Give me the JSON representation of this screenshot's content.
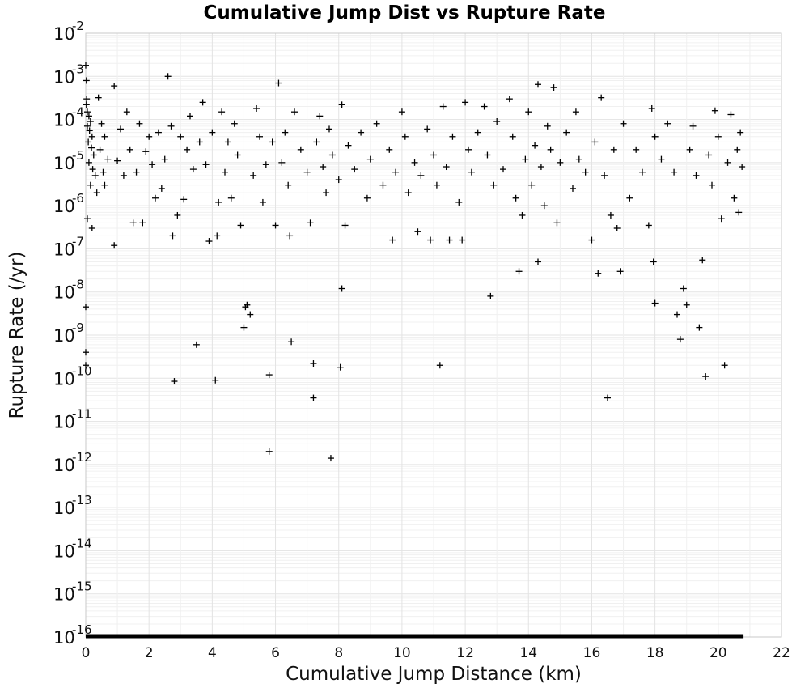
{
  "chart_data": {
    "type": "scatter",
    "title": "Cumulative Jump Dist vs Rupture Rate",
    "xlabel": "Cumulative Jump Distance (km)",
    "ylabel": "Rupture Rate (/yr)",
    "xlim": [
      0,
      22
    ],
    "ylim": [
      1e-16,
      0.01
    ],
    "yscale": "log",
    "grid": true,
    "marker": "plus",
    "marker_color": "#000000",
    "x_ticks": [
      "0",
      "2",
      "4",
      "6",
      "8",
      "10",
      "12",
      "14",
      "16",
      "18",
      "20",
      "22"
    ],
    "y_ticks": [
      {
        "base": "10",
        "exp": "-2"
      },
      {
        "base": "10",
        "exp": "-3"
      },
      {
        "base": "10",
        "exp": "-4"
      },
      {
        "base": "10",
        "exp": "-5"
      },
      {
        "base": "10",
        "exp": "-6"
      },
      {
        "base": "10",
        "exp": "-7"
      },
      {
        "base": "10",
        "exp": "-8"
      },
      {
        "base": "10",
        "exp": "-9"
      },
      {
        "base": "10",
        "exp": "-10"
      },
      {
        "base": "10",
        "exp": "-11"
      },
      {
        "base": "10",
        "exp": "-12"
      },
      {
        "base": "10",
        "exp": "-13"
      },
      {
        "base": "10",
        "exp": "-14"
      },
      {
        "base": "10",
        "exp": "-15"
      },
      {
        "base": "10",
        "exp": "-16"
      }
    ],
    "floor_series": {
      "y": 1e-16,
      "x_range": [
        0,
        20.8
      ]
    },
    "points": [
      [
        0.0,
        0.0018
      ],
      [
        0.02,
        0.0008
      ],
      [
        0.03,
        0.0003
      ],
      [
        0.02,
        0.00022
      ],
      [
        0.05,
        0.00015
      ],
      [
        0.1,
        0.00012
      ],
      [
        0.15,
        9e-05
      ],
      [
        0.05,
        7e-05
      ],
      [
        0.12,
        5.5e-05
      ],
      [
        0.2,
        4e-05
      ],
      [
        0.08,
        3e-05
      ],
      [
        0.18,
        2.2e-05
      ],
      [
        0.25,
        1.5e-05
      ],
      [
        0.1,
        1e-05
      ],
      [
        0.22,
        7e-06
      ],
      [
        0.3,
        5e-06
      ],
      [
        0.15,
        3e-06
      ],
      [
        0.35,
        2e-06
      ],
      [
        0.05,
        5e-07
      ],
      [
        0.2,
        3e-07
      ],
      [
        0.0,
        4.5e-09
      ],
      [
        0.0,
        4e-10
      ],
      [
        0.0,
        2e-10
      ],
      [
        0.4,
        0.00032
      ],
      [
        0.5,
        8e-05
      ],
      [
        0.6,
        4e-05
      ],
      [
        0.45,
        2e-05
      ],
      [
        0.7,
        1.2e-05
      ],
      [
        0.55,
        6e-06
      ],
      [
        0.6,
        3e-06
      ],
      [
        0.9,
        0.0006
      ],
      [
        0.9,
        1.2e-07
      ],
      [
        1.0,
        1.1e-05
      ],
      [
        1.1,
        6e-05
      ],
      [
        1.2,
        5e-06
      ],
      [
        1.3,
        0.00015
      ],
      [
        1.4,
        2e-05
      ],
      [
        1.5,
        4e-07
      ],
      [
        1.6,
        6e-06
      ],
      [
        1.7,
        8e-05
      ],
      [
        1.8,
        4e-07
      ],
      [
        1.9,
        1.8e-05
      ],
      [
        2.0,
        4e-05
      ],
      [
        2.1,
        9e-06
      ],
      [
        2.2,
        1.5e-06
      ],
      [
        2.3,
        5e-05
      ],
      [
        2.4,
        2.5e-06
      ],
      [
        2.5,
        1.2e-05
      ],
      [
        2.6,
        0.001
      ],
      [
        2.7,
        7e-05
      ],
      [
        2.75,
        2e-07
      ],
      [
        2.8,
        8.5e-11
      ],
      [
        2.9,
        6e-07
      ],
      [
        3.0,
        4e-05
      ],
      [
        3.1,
        1.4e-06
      ],
      [
        3.2,
        2e-05
      ],
      [
        3.3,
        0.00012
      ],
      [
        3.4,
        7e-06
      ],
      [
        3.5,
        6e-10
      ],
      [
        3.6,
        3e-05
      ],
      [
        3.7,
        0.00025
      ],
      [
        3.8,
        9e-06
      ],
      [
        3.9,
        1.5e-07
      ],
      [
        4.0,
        5e-05
      ],
      [
        4.1,
        9e-11
      ],
      [
        4.15,
        2e-07
      ],
      [
        4.2,
        1.2e-06
      ],
      [
        4.3,
        0.00015
      ],
      [
        4.4,
        6e-06
      ],
      [
        4.5,
        3e-05
      ],
      [
        4.6,
        1.5e-06
      ],
      [
        4.7,
        8e-05
      ],
      [
        4.8,
        1.5e-05
      ],
      [
        4.9,
        3.5e-07
      ],
      [
        5.0,
        1.5e-09
      ],
      [
        5.05,
        4.5e-09
      ],
      [
        5.1,
        5e-09
      ],
      [
        5.2,
        3e-09
      ],
      [
        5.3,
        5e-06
      ],
      [
        5.4,
        0.00018
      ],
      [
        5.5,
        4e-05
      ],
      [
        5.6,
        1.2e-06
      ],
      [
        5.7,
        9e-06
      ],
      [
        5.8,
        1.2e-10
      ],
      [
        5.8,
        2e-12
      ],
      [
        5.9,
        3e-05
      ],
      [
        6.0,
        3.5e-07
      ],
      [
        6.1,
        0.0007
      ],
      [
        6.2,
        1e-05
      ],
      [
        6.3,
        5e-05
      ],
      [
        6.4,
        3e-06
      ],
      [
        6.45,
        2e-07
      ],
      [
        6.5,
        7e-10
      ],
      [
        6.6,
        0.00015
      ],
      [
        6.8,
        2e-05
      ],
      [
        7.0,
        6e-06
      ],
      [
        7.1,
        4e-07
      ],
      [
        7.2,
        2.2e-10
      ],
      [
        7.2,
        3.5e-11
      ],
      [
        7.3,
        3e-05
      ],
      [
        7.4,
        0.00012
      ],
      [
        7.5,
        8e-06
      ],
      [
        7.6,
        2e-06
      ],
      [
        7.7,
        6e-05
      ],
      [
        7.75,
        1.4e-12
      ],
      [
        7.8,
        1.5e-05
      ],
      [
        8.0,
        4e-06
      ],
      [
        8.05,
        1.8e-10
      ],
      [
        8.1,
        1.2e-08
      ],
      [
        8.1,
        0.00022
      ],
      [
        8.2,
        3.5e-07
      ],
      [
        8.3,
        2.5e-05
      ],
      [
        8.5,
        7e-06
      ],
      [
        8.7,
        5e-05
      ],
      [
        8.9,
        1.5e-06
      ],
      [
        9.0,
        1.2e-05
      ],
      [
        9.2,
        8e-05
      ],
      [
        9.4,
        3e-06
      ],
      [
        9.6,
        2e-05
      ],
      [
        9.7,
        1.6e-07
      ],
      [
        9.8,
        6e-06
      ],
      [
        10.0,
        0.00015
      ],
      [
        10.1,
        4e-05
      ],
      [
        10.2,
        2e-06
      ],
      [
        10.4,
        1e-05
      ],
      [
        10.5,
        2.5e-07
      ],
      [
        10.6,
        5e-06
      ],
      [
        10.8,
        6e-05
      ],
      [
        10.9,
        1.6e-07
      ],
      [
        11.0,
        1.5e-05
      ],
      [
        11.1,
        3e-06
      ],
      [
        11.2,
        2e-10
      ],
      [
        11.3,
        0.0002
      ],
      [
        11.4,
        8e-06
      ],
      [
        11.5,
        1.6e-07
      ],
      [
        11.6,
        4e-05
      ],
      [
        11.8,
        1.2e-06
      ],
      [
        11.9,
        1.6e-07
      ],
      [
        12.0,
        0.00025
      ],
      [
        12.1,
        2e-05
      ],
      [
        12.2,
        6e-06
      ],
      [
        12.4,
        5e-05
      ],
      [
        12.6,
        0.0002
      ],
      [
        12.7,
        1.5e-05
      ],
      [
        12.8,
        8e-09
      ],
      [
        12.9,
        3e-06
      ],
      [
        13.0,
        9e-05
      ],
      [
        13.2,
        7e-06
      ],
      [
        13.4,
        0.0003
      ],
      [
        13.5,
        4e-05
      ],
      [
        13.6,
        1.5e-06
      ],
      [
        13.7,
        3e-08
      ],
      [
        13.8,
        6e-07
      ],
      [
        13.9,
        1.2e-05
      ],
      [
        14.0,
        0.00015
      ],
      [
        14.1,
        3e-06
      ],
      [
        14.2,
        2.5e-05
      ],
      [
        14.3,
        5e-08
      ],
      [
        14.3,
        0.00065
      ],
      [
        14.4,
        8e-06
      ],
      [
        14.5,
        1e-06
      ],
      [
        14.6,
        7e-05
      ],
      [
        14.7,
        2e-05
      ],
      [
        14.8,
        0.00055
      ],
      [
        14.9,
        4e-07
      ],
      [
        15.0,
        1e-05
      ],
      [
        15.2,
        5e-05
      ],
      [
        15.4,
        2.5e-06
      ],
      [
        15.5,
        0.00015
      ],
      [
        15.6,
        1.2e-05
      ],
      [
        15.8,
        6e-06
      ],
      [
        16.0,
        1.6e-07
      ],
      [
        16.1,
        3e-05
      ],
      [
        16.2,
        2.7e-08
      ],
      [
        16.3,
        0.00032
      ],
      [
        16.4,
        5e-06
      ],
      [
        16.5,
        3.5e-11
      ],
      [
        16.6,
        6e-07
      ],
      [
        16.7,
        2e-05
      ],
      [
        16.8,
        3e-07
      ],
      [
        16.9,
        3e-08
      ],
      [
        17.0,
        8e-05
      ],
      [
        17.2,
        1.5e-06
      ],
      [
        17.4,
        2e-05
      ],
      [
        17.6,
        6e-06
      ],
      [
        17.8,
        3.5e-07
      ],
      [
        17.9,
        0.00018
      ],
      [
        17.95,
        5e-08
      ],
      [
        18.0,
        5.5e-09
      ],
      [
        18.0,
        4e-05
      ],
      [
        18.2,
        1.2e-05
      ],
      [
        18.4,
        8e-05
      ],
      [
        18.6,
        6e-06
      ],
      [
        18.7,
        3e-09
      ],
      [
        18.8,
        8e-10
      ],
      [
        18.9,
        1.2e-08
      ],
      [
        19.0,
        5e-09
      ],
      [
        19.1,
        2e-05
      ],
      [
        19.2,
        7e-05
      ],
      [
        19.3,
        5e-06
      ],
      [
        19.4,
        1.5e-09
      ],
      [
        19.5,
        5.5e-08
      ],
      [
        19.6,
        1.1e-10
      ],
      [
        19.7,
        1.5e-05
      ],
      [
        19.8,
        3e-06
      ],
      [
        19.9,
        0.00016
      ],
      [
        20.0,
        4e-05
      ],
      [
        20.1,
        5e-07
      ],
      [
        20.2,
        2e-10
      ],
      [
        20.3,
        1e-05
      ],
      [
        20.4,
        0.00013
      ],
      [
        20.5,
        1.5e-06
      ],
      [
        20.6,
        2e-05
      ],
      [
        20.65,
        7e-07
      ],
      [
        20.7,
        5e-05
      ],
      [
        20.75,
        8e-06
      ]
    ]
  }
}
